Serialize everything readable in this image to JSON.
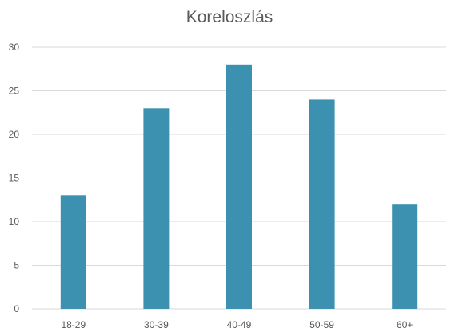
{
  "chart_data": {
    "type": "bar",
    "title": "Koreloszlás",
    "categories": [
      "18-29",
      "30-39",
      "40-49",
      "50-59",
      "60+"
    ],
    "values": [
      13,
      23,
      28,
      24,
      12
    ],
    "xlabel": "",
    "ylabel": "",
    "ylim": [
      0,
      30
    ],
    "yticks": [
      0,
      5,
      10,
      15,
      20,
      25,
      30
    ],
    "grid": true,
    "legend": "none",
    "bar_color": "#3D91B0",
    "grid_color": "#D9D9D9",
    "text_color": "#595959"
  }
}
